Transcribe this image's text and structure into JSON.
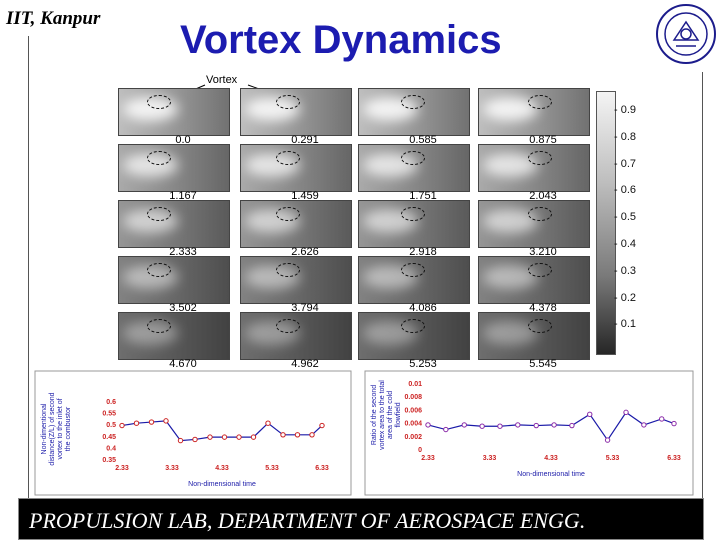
{
  "header": {
    "institute": "IIT, Kanpur",
    "title": "Vortex Dynamics",
    "logo_name": "institute-seal"
  },
  "figure": {
    "vortex_label": "Vortex",
    "time_labels": [
      "0.0",
      "0.291",
      "0.585",
      "0.875",
      "1.167",
      "1.459",
      "1.751",
      "2.043",
      "2.333",
      "2.626",
      "2.918",
      "3.210",
      "3.502",
      "3.794",
      "4.086",
      "4.378",
      "4.670",
      "4.962",
      "5.253",
      "5.545"
    ],
    "colorbar_ticks": [
      "0.9",
      "0.8",
      "0.7",
      "0.6",
      "0.5",
      "0.4",
      "0.3",
      "0.2",
      "0.1"
    ]
  },
  "chart_data": [
    {
      "type": "line",
      "ylabel": "Non-dimentional distance(Z/L) of second vortex to the inlet of the combustor",
      "xlabel": "Non-dimensional time",
      "x_ticks": [
        "2.33",
        "3.33",
        "4.33",
        "5.33",
        "6.33"
      ],
      "y_ticks": [
        "0.6",
        "0.55",
        "0.5",
        "0.45",
        "0.4",
        "0.35"
      ],
      "ylim": [
        0.35,
        0.6
      ],
      "xlim": [
        2.33,
        6.33
      ],
      "series": [
        {
          "x": [
            2.33,
            2.62,
            2.92,
            3.21,
            3.5,
            3.79,
            4.09,
            4.38,
            4.67,
            4.96,
            5.25,
            5.55,
            5.84,
            6.13,
            6.33
          ],
          "y": [
            0.49,
            0.5,
            0.505,
            0.51,
            0.425,
            0.43,
            0.44,
            0.44,
            0.44,
            0.44,
            0.5,
            0.45,
            0.45,
            0.45,
            0.49
          ]
        }
      ],
      "colors": {
        "line": "#1a1aa8",
        "marker": "#cc2222",
        "tick": "#cc2222"
      }
    },
    {
      "type": "line",
      "ylabel": "Ratio of the second vortex area to the total area of the cold flowfield",
      "xlabel": "Non-dimensional time",
      "x_ticks": [
        "2.33",
        "3.33",
        "4.33",
        "5.33",
        "6.33"
      ],
      "y_ticks": [
        "0.01",
        "0.008",
        "0.006",
        "0.004",
        "0.002",
        "0"
      ],
      "ylim": [
        0,
        0.01
      ],
      "xlim": [
        2.33,
        6.33
      ],
      "series": [
        {
          "x": [
            2.33,
            2.62,
            2.92,
            3.21,
            3.5,
            3.79,
            4.09,
            4.38,
            4.67,
            4.96,
            5.25,
            5.55,
            5.84,
            6.13,
            6.33
          ],
          "y": [
            0.0035,
            0.0028,
            0.0035,
            0.0033,
            0.0033,
            0.0035,
            0.0034,
            0.0035,
            0.0034,
            0.0051,
            0.0012,
            0.0054,
            0.0035,
            0.0044,
            0.0037
          ]
        }
      ],
      "colors": {
        "line": "#1a1aa8",
        "marker": "#8a2aa8",
        "tick": "#cc2222"
      }
    }
  ],
  "footer": {
    "text": "PROPULSION LAB, DEPARTMENT OF AEROSPACE ENGG."
  }
}
